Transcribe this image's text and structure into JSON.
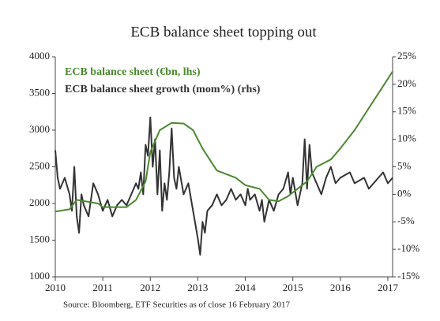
{
  "chart_data": {
    "type": "line",
    "title": "ECB balance sheet topping out",
    "source": "Source: Bloomberg, ETF Securities as of close 16 February 2017",
    "xlim": [
      2010,
      2017.1
    ],
    "xticks": [
      2010,
      2011,
      2012,
      2013,
      2014,
      2015,
      2016,
      2017
    ],
    "ylim": [
      1000,
      4000
    ],
    "yticks": [
      1000,
      1500,
      2000,
      2500,
      3000,
      3500,
      4000
    ],
    "y2lim": [
      -15,
      25
    ],
    "y2ticks": [
      {
        "value": -15,
        "label": "-15%"
      },
      {
        "value": -10,
        "label": "-10%"
      },
      {
        "value": -5,
        "label": "-5%"
      },
      {
        "value": 0,
        "label": "0%"
      },
      {
        "value": 5,
        "label": "5%"
      },
      {
        "value": 10,
        "label": "10%"
      },
      {
        "value": 15,
        "label": "15%"
      },
      {
        "value": 20,
        "label": "20%"
      },
      {
        "value": 25,
        "label": "25%"
      }
    ],
    "series": [
      {
        "name": "ECB balance sheet (€bn, lhs)",
        "color": "#4a8a2e",
        "axis": "y",
        "x": [
          2010.0,
          2010.3,
          2010.45,
          2010.9,
          2011.0,
          2011.5,
          2011.7,
          2011.9,
          2012.0,
          2012.2,
          2012.45,
          2012.7,
          2012.9,
          2013.1,
          2013.4,
          2013.6,
          2013.8,
          2014.0,
          2014.3,
          2014.5,
          2014.7,
          2014.9,
          2015.0,
          2015.3,
          2015.5,
          2015.8,
          2016.0,
          2016.3,
          2016.6,
          2016.85,
          2017.0,
          2017.1
        ],
        "values": [
          1890,
          1920,
          2050,
          2000,
          1950,
          1950,
          2050,
          2300,
          2700,
          3000,
          3100,
          3090,
          3000,
          2750,
          2450,
          2400,
          2350,
          2250,
          2200,
          2050,
          2030,
          2100,
          2150,
          2300,
          2500,
          2600,
          2750,
          3000,
          3300,
          3550,
          3700,
          3800
        ]
      },
      {
        "name": "ECB balance sheet growth (mom%) (rhs)",
        "color": "#333333",
        "axis": "y2",
        "x": [
          2010.0,
          2010.05,
          2010.1,
          2010.2,
          2010.3,
          2010.35,
          2010.4,
          2010.45,
          2010.5,
          2010.55,
          2010.6,
          2010.7,
          2010.75,
          2010.8,
          2010.9,
          2011.0,
          2011.1,
          2011.2,
          2011.3,
          2011.4,
          2011.5,
          2011.6,
          2011.7,
          2011.75,
          2011.8,
          2011.85,
          2011.9,
          2011.95,
          2012.0,
          2012.05,
          2012.1,
          2012.15,
          2012.2,
          2012.25,
          2012.3,
          2012.35,
          2012.4,
          2012.45,
          2012.5,
          2012.55,
          2012.6,
          2012.7,
          2012.8,
          2012.9,
          2013.0,
          2013.05,
          2013.1,
          2013.15,
          2013.2,
          2013.3,
          2013.4,
          2013.5,
          2013.6,
          2013.7,
          2013.8,
          2013.9,
          2014.0,
          2014.05,
          2014.1,
          2014.2,
          2014.3,
          2014.35,
          2014.4,
          2014.5,
          2014.6,
          2014.7,
          2014.8,
          2014.9,
          2014.95,
          2015.0,
          2015.1,
          2015.2,
          2015.25,
          2015.3,
          2015.35,
          2015.4,
          2015.5,
          2015.6,
          2015.7,
          2015.8,
          2015.9,
          2016.0,
          2016.2,
          2016.3,
          2016.5,
          2016.6,
          2016.8,
          2016.9,
          2017.0,
          2017.1
        ],
        "values": [
          8,
          3,
          1,
          3,
          0,
          -3,
          5,
          -4,
          -7,
          0,
          -2,
          -4,
          -1,
          2,
          0,
          -3,
          -1,
          -4,
          -2,
          -1,
          -2,
          0,
          2,
          1,
          4,
          0,
          9,
          7,
          14,
          5,
          10,
          0,
          8,
          -3,
          2,
          -1,
          4,
          12,
          3,
          1,
          5,
          0,
          2,
          -3,
          -8,
          -11,
          -5,
          -7,
          -3,
          -2,
          0,
          -2,
          -1,
          1,
          -1,
          0,
          -2,
          1,
          -1,
          0,
          -3,
          -1,
          -5,
          -1,
          -3,
          0,
          1,
          4,
          0,
          3,
          -2,
          2,
          10,
          1,
          9,
          4,
          2,
          0,
          3,
          5,
          2,
          3,
          4,
          2,
          3,
          1,
          3,
          4,
          2,
          3
        ]
      }
    ]
  }
}
